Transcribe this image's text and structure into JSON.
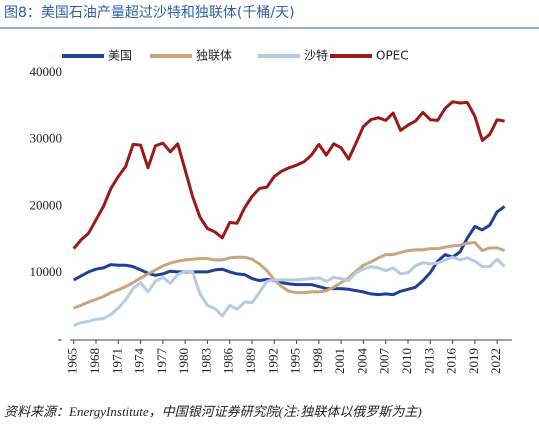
{
  "chart_data": {
    "type": "line",
    "title": "图8：美国石油产量超过沙特和独联体(千桶/天)",
    "source": "资料来源：EnergyInstitute，中国银河证券研究院(注:独联体以俄罗斯为主)",
    "x": [
      1965,
      1966,
      1967,
      1968,
      1969,
      1970,
      1971,
      1972,
      1973,
      1974,
      1975,
      1976,
      1977,
      1978,
      1979,
      1980,
      1981,
      1982,
      1983,
      1984,
      1985,
      1986,
      1987,
      1988,
      1989,
      1990,
      1991,
      1992,
      1993,
      1994,
      1995,
      1996,
      1997,
      1998,
      1999,
      2000,
      2001,
      2002,
      2003,
      2004,
      2005,
      2006,
      2007,
      2008,
      2009,
      2010,
      2011,
      2012,
      2013,
      2014,
      2015,
      2016,
      2017,
      2018,
      2019,
      2020,
      2021,
      2022,
      2023
    ],
    "xlim": [
      1964.5,
      2024
    ],
    "xticks": [
      1965,
      1968,
      1971,
      1974,
      1977,
      1980,
      1983,
      1986,
      1989,
      1992,
      1995,
      1998,
      2001,
      2004,
      2007,
      2010,
      2013,
      2016,
      2019,
      2022
    ],
    "ylim": [
      0,
      40000
    ],
    "yticks": [
      {
        "value": 0,
        "label": "-"
      },
      10000,
      20000,
      30000,
      40000
    ],
    "legend": "top",
    "series": [
      {
        "name": "美国",
        "color": "#1f3f99",
        "values": [
          9000,
          9600,
          10200,
          10600,
          10800,
          11300,
          11200,
          11200,
          11000,
          10500,
          10000,
          9700,
          9900,
          10300,
          10200,
          10200,
          10200,
          10200,
          10200,
          10500,
          10600,
          10200,
          9900,
          9800,
          9200,
          8900,
          9100,
          8900,
          8600,
          8400,
          8300,
          8300,
          8300,
          8000,
          7700,
          7700,
          7700,
          7600,
          7400,
          7200,
          6900,
          6800,
          6900,
          6800,
          7300,
          7600,
          7900,
          8900,
          10100,
          11800,
          12800,
          12400,
          13200,
          15300,
          17000,
          16500,
          17200,
          19200,
          20000
        ]
      },
      {
        "name": "独联体",
        "color": "#c8a57e",
        "values": [
          4800,
          5200,
          5700,
          6100,
          6500,
          7100,
          7500,
          8000,
          8600,
          9300,
          9900,
          10500,
          11100,
          11500,
          11800,
          12000,
          12100,
          12200,
          12200,
          12000,
          12000,
          12300,
          12400,
          12400,
          12100,
          11400,
          10400,
          9000,
          8000,
          7300,
          7100,
          7100,
          7200,
          7200,
          7400,
          7900,
          8600,
          9300,
          10300,
          11200,
          11700,
          12300,
          12800,
          12800,
          13100,
          13400,
          13500,
          13500,
          13700,
          13700,
          13900,
          14100,
          14200,
          14500,
          14600,
          13400,
          13800,
          13800,
          13400
        ]
      },
      {
        "name": "沙特",
        "color": "#b7cbe5",
        "values": [
          2200,
          2600,
          2800,
          3100,
          3200,
          3800,
          4800,
          6000,
          7700,
          8600,
          7200,
          8800,
          9400,
          8500,
          9800,
          10300,
          10200,
          6900,
          5200,
          4700,
          3600,
          5200,
          4600,
          5700,
          5600,
          7100,
          8800,
          9000,
          9000,
          9000,
          9000,
          9100,
          9200,
          9300,
          8800,
          9400,
          9200,
          8900,
          10100,
          10600,
          11000,
          10800,
          10400,
          10800,
          9900,
          10100,
          11100,
          11600,
          11400,
          11500,
          12000,
          12400,
          12000,
          12300,
          11800,
          11000,
          11000,
          12100,
          11000
        ]
      },
      {
        "name": "OPEC",
        "color": "#9a1a1a",
        "values": [
          13700,
          15000,
          16000,
          18000,
          20000,
          22700,
          24500,
          26000,
          29300,
          29200,
          25800,
          29100,
          29500,
          28200,
          29400,
          25500,
          21500,
          18400,
          16700,
          16200,
          15300,
          17600,
          17500,
          19800,
          21500,
          22700,
          22900,
          24500,
          25300,
          25800,
          26200,
          26700,
          27700,
          29300,
          27700,
          29400,
          28800,
          27100,
          29500,
          32000,
          33000,
          33300,
          32900,
          34000,
          31400,
          32200,
          32800,
          34100,
          33000,
          32900,
          34700,
          35700,
          35500,
          35600,
          33500,
          29900,
          30800,
          33000,
          32800
        ]
      }
    ]
  }
}
